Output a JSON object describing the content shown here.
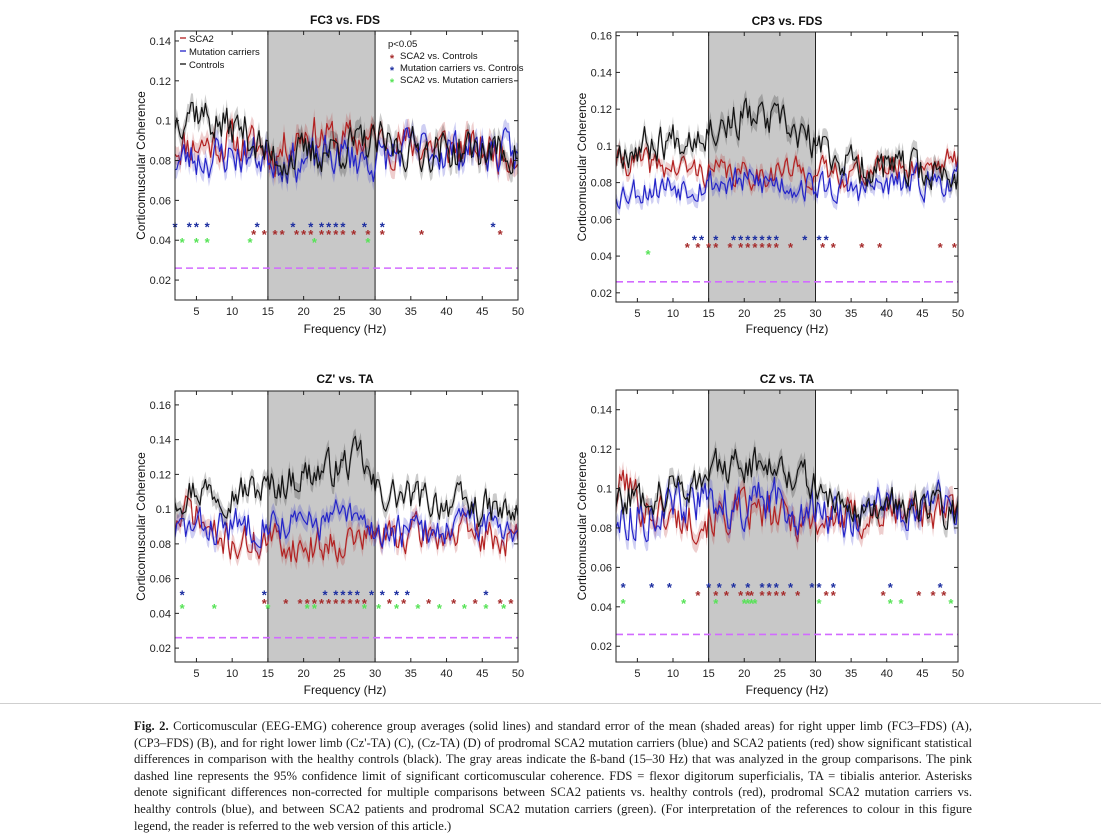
{
  "colors": {
    "sca2": "#b22020",
    "mutation": "#2323c8",
    "controls": "#111111",
    "sig_red": "#a52a2a",
    "sig_blue": "#1c2ea0",
    "sig_green": "#56e356",
    "threshold": "#d26bff",
    "beta_band": "#c8c8c8"
  },
  "chart_data": [
    {
      "type": "line",
      "title": "FC3 vs. FDS",
      "xlabel": "Frequency (Hz)",
      "ylabel": "Corticomuscular Coherence",
      "xlim": [
        2,
        50
      ],
      "ylim": [
        0.01,
        0.145
      ],
      "xticks": [
        5,
        10,
        15,
        20,
        25,
        30,
        35,
        40,
        45,
        50
      ],
      "yticks": [
        0.02,
        0.04,
        0.06,
        0.08,
        0.1,
        0.12,
        0.14
      ],
      "ytick_labels": [
        "0.02",
        "0.04",
        "0.06",
        "0.08",
        "0.1",
        "0.12",
        "0.14"
      ],
      "shaded_band": [
        15,
        30
      ],
      "threshold": 0.026,
      "legend_lines": [
        "SCA2",
        "Mutation carriers",
        "Controls"
      ],
      "legend_sig_title": "p<0.05",
      "legend_sig": [
        "SCA2 vs. Controls",
        "Mutation carriers vs. Controls",
        "SCA2 vs. Mutation carriers"
      ],
      "series": [
        {
          "name": "SCA2",
          "color_key": "sca2",
          "base": 0.088,
          "amp": 0.012,
          "seed": 11,
          "x": [
            2,
            10,
            14,
            16,
            20,
            25,
            30,
            35,
            40,
            45,
            50
          ],
          "y": [
            0.088,
            0.089,
            0.086,
            0.083,
            0.095,
            0.09,
            0.09,
            0.088,
            0.087,
            0.085,
            0.085
          ]
        },
        {
          "name": "Mutation carriers",
          "color_key": "mutation",
          "base": 0.082,
          "amp": 0.012,
          "seed": 23,
          "x": [
            2,
            10,
            15,
            20,
            25,
            30,
            35,
            40,
            45,
            50
          ],
          "y": [
            0.08,
            0.083,
            0.082,
            0.079,
            0.083,
            0.08,
            0.086,
            0.085,
            0.086,
            0.082
          ]
        },
        {
          "name": "Controls",
          "color_key": "controls",
          "base": 0.092,
          "amp": 0.012,
          "seed": 37,
          "x": [
            2,
            4,
            8,
            12,
            15,
            20,
            25,
            30,
            35,
            40,
            45,
            50
          ],
          "y": [
            0.1,
            0.108,
            0.098,
            0.095,
            0.082,
            0.082,
            0.087,
            0.088,
            0.086,
            0.085,
            0.085,
            0.084
          ]
        }
      ],
      "significance": [
        {
          "name": "SCA2 vs. Controls",
          "color_key": "sig_red",
          "y": 0.043,
          "x": [
            13,
            14.5,
            16,
            17,
            19,
            20,
            21,
            22.5,
            23.5,
            24.5,
            25.5,
            27,
            29,
            31,
            36.5,
            47.5
          ]
        },
        {
          "name": "Mutation carriers vs. Controls",
          "color_key": "sig_blue",
          "y": 0.047,
          "x": [
            2,
            4,
            5,
            6.5,
            13.5,
            18.5,
            21,
            22.5,
            23.5,
            24.5,
            25.5,
            28.5,
            31,
            46.5
          ]
        },
        {
          "name": "SCA2 vs. Mutation carriers",
          "color_key": "sig_green",
          "y": 0.039,
          "x": [
            3,
            5,
            6.5,
            12.5,
            21.5,
            29
          ]
        }
      ]
    },
    {
      "type": "line",
      "title": "CP3 vs. FDS",
      "xlabel": "Frequency (Hz)",
      "ylabel": "Corticomuscular Coherence",
      "xlim": [
        2,
        50
      ],
      "ylim": [
        0.015,
        0.162
      ],
      "xticks": [
        5,
        10,
        15,
        20,
        25,
        30,
        35,
        40,
        45,
        50
      ],
      "yticks": [
        0.02,
        0.04,
        0.06,
        0.08,
        0.1,
        0.12,
        0.14,
        0.16
      ],
      "ytick_labels": [
        "0.02",
        "0.04",
        "0.06",
        "0.08",
        "0.1",
        "0.12",
        "0.14",
        "0.16"
      ],
      "shaded_band": [
        15,
        30
      ],
      "threshold": 0.026,
      "series": [
        {
          "name": "SCA2",
          "color_key": "sca2",
          "base": 0.088,
          "amp": 0.009,
          "seed": 41,
          "x": [
            2,
            10,
            15,
            20,
            25,
            30,
            35,
            40,
            45,
            50
          ],
          "y": [
            0.092,
            0.088,
            0.086,
            0.084,
            0.087,
            0.085,
            0.086,
            0.088,
            0.09,
            0.092
          ]
        },
        {
          "name": "Mutation carriers",
          "color_key": "mutation",
          "base": 0.078,
          "amp": 0.01,
          "seed": 53,
          "x": [
            2,
            10,
            15,
            20,
            25,
            30,
            35,
            40,
            45,
            50
          ],
          "y": [
            0.075,
            0.079,
            0.08,
            0.08,
            0.08,
            0.078,
            0.076,
            0.078,
            0.08,
            0.082
          ]
        },
        {
          "name": "Controls",
          "color_key": "controls",
          "base": 0.1,
          "amp": 0.012,
          "seed": 67,
          "x": [
            2,
            5,
            10,
            15,
            20,
            25,
            30,
            35,
            40,
            45,
            50
          ],
          "y": [
            0.098,
            0.1,
            0.104,
            0.11,
            0.116,
            0.112,
            0.1,
            0.09,
            0.088,
            0.086,
            0.084
          ]
        }
      ],
      "significance": [
        {
          "name": "SCA2 vs. Controls",
          "color_key": "sig_red",
          "y": 0.045,
          "x": [
            12,
            13.5,
            15,
            16,
            18,
            19.5,
            20.5,
            21.5,
            22.5,
            23.5,
            24.5,
            26.5,
            31,
            32.5,
            36.5,
            39,
            47.5,
            49.5
          ]
        },
        {
          "name": "Mutation carriers vs. Controls",
          "color_key": "sig_blue",
          "y": 0.049,
          "x": [
            13,
            14,
            16,
            18.5,
            19.5,
            20.5,
            21.5,
            22.5,
            23.5,
            24.5,
            28.5,
            30.5,
            31.5
          ]
        },
        {
          "name": "SCA2 vs. Mutation carriers",
          "color_key": "sig_green",
          "y": 0.041,
          "x": [
            6.5
          ]
        }
      ]
    },
    {
      "type": "line",
      "title": "CZ' vs. TA",
      "xlabel": "Frequency (Hz)",
      "ylabel": "Corticomuscular Coherence",
      "xlim": [
        2,
        50
      ],
      "ylim": [
        0.012,
        0.168
      ],
      "xticks": [
        5,
        10,
        15,
        20,
        25,
        30,
        35,
        40,
        45,
        50
      ],
      "yticks": [
        0.02,
        0.04,
        0.06,
        0.08,
        0.1,
        0.12,
        0.14,
        0.16
      ],
      "ytick_labels": [
        "0.02",
        "0.04",
        "0.06",
        "0.08",
        "0.1",
        "0.12",
        "0.14",
        "0.16"
      ],
      "shaded_band": [
        15,
        30
      ],
      "threshold": 0.026,
      "series": [
        {
          "name": "SCA2",
          "color_key": "sca2",
          "base": 0.082,
          "amp": 0.012,
          "seed": 71,
          "x": [
            2,
            4,
            8,
            12,
            15,
            20,
            25,
            30,
            35,
            40,
            45,
            50
          ],
          "y": [
            0.09,
            0.1,
            0.082,
            0.08,
            0.082,
            0.078,
            0.082,
            0.084,
            0.085,
            0.086,
            0.084,
            0.082
          ]
        },
        {
          "name": "Mutation carriers",
          "color_key": "mutation",
          "base": 0.09,
          "amp": 0.012,
          "seed": 83,
          "x": [
            2,
            10,
            15,
            20,
            25,
            30,
            35,
            40,
            45,
            50
          ],
          "y": [
            0.088,
            0.09,
            0.094,
            0.09,
            0.096,
            0.088,
            0.086,
            0.09,
            0.092,
            0.09
          ]
        },
        {
          "name": "Controls",
          "color_key": "controls",
          "base": 0.11,
          "amp": 0.012,
          "seed": 97,
          "x": [
            2,
            5,
            10,
            15,
            20,
            25,
            28,
            30,
            35,
            40,
            45,
            50
          ],
          "y": [
            0.108,
            0.112,
            0.11,
            0.112,
            0.12,
            0.124,
            0.13,
            0.11,
            0.106,
            0.104,
            0.1,
            0.096
          ]
        }
      ],
      "significance": [
        {
          "name": "SCA2 vs. Controls",
          "color_key": "sig_red",
          "y": 0.046,
          "x": [
            14.5,
            17.5,
            19.5,
            20.5,
            21.5,
            22.5,
            23.5,
            24.5,
            25.5,
            26.5,
            27.5,
            28.5,
            32,
            34,
            37.5,
            41,
            44,
            47.5,
            49
          ]
        },
        {
          "name": "Mutation carriers vs. Controls",
          "color_key": "sig_blue",
          "y": 0.051,
          "x": [
            3,
            14.5,
            23,
            24.5,
            25.5,
            26.5,
            27.5,
            29.5,
            31,
            33,
            34.5,
            45.5
          ]
        },
        {
          "name": "SCA2 vs. Mutation carriers",
          "color_key": "sig_green",
          "y": 0.043,
          "x": [
            3,
            7.5,
            15,
            20.5,
            21.5,
            28.5,
            30.5,
            33,
            36,
            39,
            42.5,
            45.5,
            48
          ]
        }
      ]
    },
    {
      "type": "line",
      "title": "CZ vs. TA",
      "xlabel": "Frequency (Hz)",
      "ylabel": "Corticomuscular Coherence",
      "xlim": [
        2,
        50
      ],
      "ylim": [
        0.012,
        0.15
      ],
      "xticks": [
        5,
        10,
        15,
        20,
        25,
        30,
        35,
        40,
        45,
        50
      ],
      "yticks": [
        0.02,
        0.04,
        0.06,
        0.08,
        0.1,
        0.12,
        0.14
      ],
      "ytick_labels": [
        "0.02",
        "0.04",
        "0.06",
        "0.08",
        "0.1",
        "0.12",
        "0.14"
      ],
      "shaded_band": [
        15,
        30
      ],
      "threshold": 0.026,
      "series": [
        {
          "name": "SCA2",
          "color_key": "sca2",
          "base": 0.086,
          "amp": 0.012,
          "seed": 101,
          "x": [
            2,
            3,
            6,
            10,
            15,
            20,
            25,
            30,
            35,
            40,
            45,
            50
          ],
          "y": [
            0.095,
            0.105,
            0.09,
            0.085,
            0.085,
            0.088,
            0.085,
            0.084,
            0.085,
            0.087,
            0.09,
            0.086
          ]
        },
        {
          "name": "Mutation carriers",
          "color_key": "mutation",
          "base": 0.088,
          "amp": 0.013,
          "seed": 113,
          "x": [
            2,
            10,
            15,
            20,
            25,
            30,
            35,
            40,
            45,
            50
          ],
          "y": [
            0.084,
            0.09,
            0.094,
            0.09,
            0.094,
            0.088,
            0.086,
            0.09,
            0.094,
            0.09
          ]
        },
        {
          "name": "Controls",
          "color_key": "controls",
          "base": 0.1,
          "amp": 0.011,
          "seed": 127,
          "x": [
            2,
            5,
            10,
            15,
            20,
            25,
            30,
            35,
            40,
            45,
            50
          ],
          "y": [
            0.094,
            0.096,
            0.1,
            0.108,
            0.112,
            0.114,
            0.1,
            0.09,
            0.09,
            0.09,
            0.088
          ]
        }
      ],
      "significance": [
        {
          "name": "SCA2 vs. Controls",
          "color_key": "sig_red",
          "y": 0.046,
          "x": [
            13.5,
            16,
            17.5,
            19.5,
            20.5,
            21,
            22.5,
            23.5,
            24.5,
            25.5,
            27.5,
            31.5,
            32.5,
            39.5,
            44.5,
            46.5,
            48
          ]
        },
        {
          "name": "Mutation carriers vs. Controls",
          "color_key": "sig_blue",
          "y": 0.05,
          "x": [
            3,
            7,
            9.5,
            15,
            16.5,
            18.5,
            20.5,
            22.5,
            23.5,
            24.5,
            26.5,
            29.5,
            30.5,
            32.5,
            40.5,
            47.5
          ]
        },
        {
          "name": "SCA2 vs. Mutation carriers",
          "color_key": "sig_green",
          "y": 0.042,
          "x": [
            3,
            11.5,
            16,
            20,
            20.5,
            21,
            21.5,
            30.5,
            40.5,
            42,
            49
          ]
        }
      ]
    }
  ],
  "caption": {
    "label": "Fig. 2.",
    "text": "Corticomuscular (EEG-EMG) coherence group averages (solid lines) and standard error of the mean (shaded areas) for right upper limb (FC3–FDS) (A), (CP3–FDS) (B), and for right lower limb (Cz'-TA) (C), (Cz-TA) (D) of prodromal SCA2 mutation carriers (blue) and SCA2 patients (red) show significant statistical differences in comparison with the healthy controls (black). The gray areas indicate the ß-band (15–30 Hz) that was analyzed in the group comparisons. The pink dashed line represents the 95% confidence limit of significant corticomuscular coherence. FDS = flexor digitorum superficialis, TA = tibialis anterior. Asterisks denote significant differences non-corrected for multiple comparisons between SCA2 patients vs. healthy controls (red), prodromal SCA2 mutation carriers vs. healthy controls (blue), and between SCA2 patients and prodromal SCA2 mutation carriers (green). (For interpretation of the references to colour in this figure legend, the reader is referred to the web version of this article.)"
  }
}
